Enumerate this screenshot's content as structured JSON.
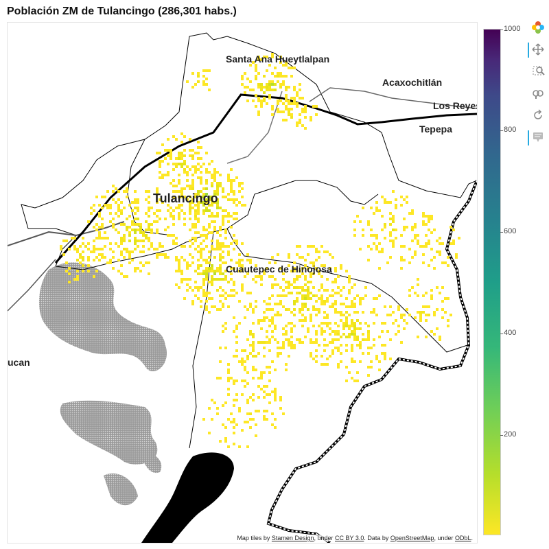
{
  "title": "Población ZM de Tulancingo (286,301 habs.)",
  "map": {
    "places": [
      {
        "name": "Santa Ana Hueytlalpan",
        "id": "place-santa-ana"
      },
      {
        "name": "Acaxochitlán",
        "id": "place-acaxochitlan"
      },
      {
        "name": "Los Reyes",
        "id": "place-los-reyes"
      },
      {
        "name": "Tepepa",
        "id": "place-tepepa"
      },
      {
        "name": "Tulancingo",
        "id": "place-tulancingo"
      },
      {
        "name": "Cuautepec de Hinojosa",
        "id": "place-cuautepec"
      },
      {
        "name": "ucan",
        "id": "place-ucan"
      }
    ],
    "attribution": {
      "prefix": "Map tiles by ",
      "stamen": "Stamen Design",
      "under1": ", under ",
      "ccby": "CC BY 3.0",
      "data_by": ". Data by ",
      "osm": "OpenStreetMap",
      "under2": ", under ",
      "odbl": "ODbL",
      "end": "."
    }
  },
  "colorbar": {
    "palette": "viridis (reversed)",
    "min": 0,
    "max": 1000,
    "ticks": [
      "1000",
      "800",
      "600",
      "400",
      "200"
    ]
  },
  "toolbar": [
    {
      "name": "bokeh-logo",
      "active": false
    },
    {
      "name": "pan-icon",
      "active": true
    },
    {
      "name": "box-zoom-icon",
      "active": false
    },
    {
      "name": "wheel-zoom-icon",
      "active": false
    },
    {
      "name": "reset-icon",
      "active": false
    },
    {
      "name": "hover-icon",
      "active": true
    }
  ]
}
